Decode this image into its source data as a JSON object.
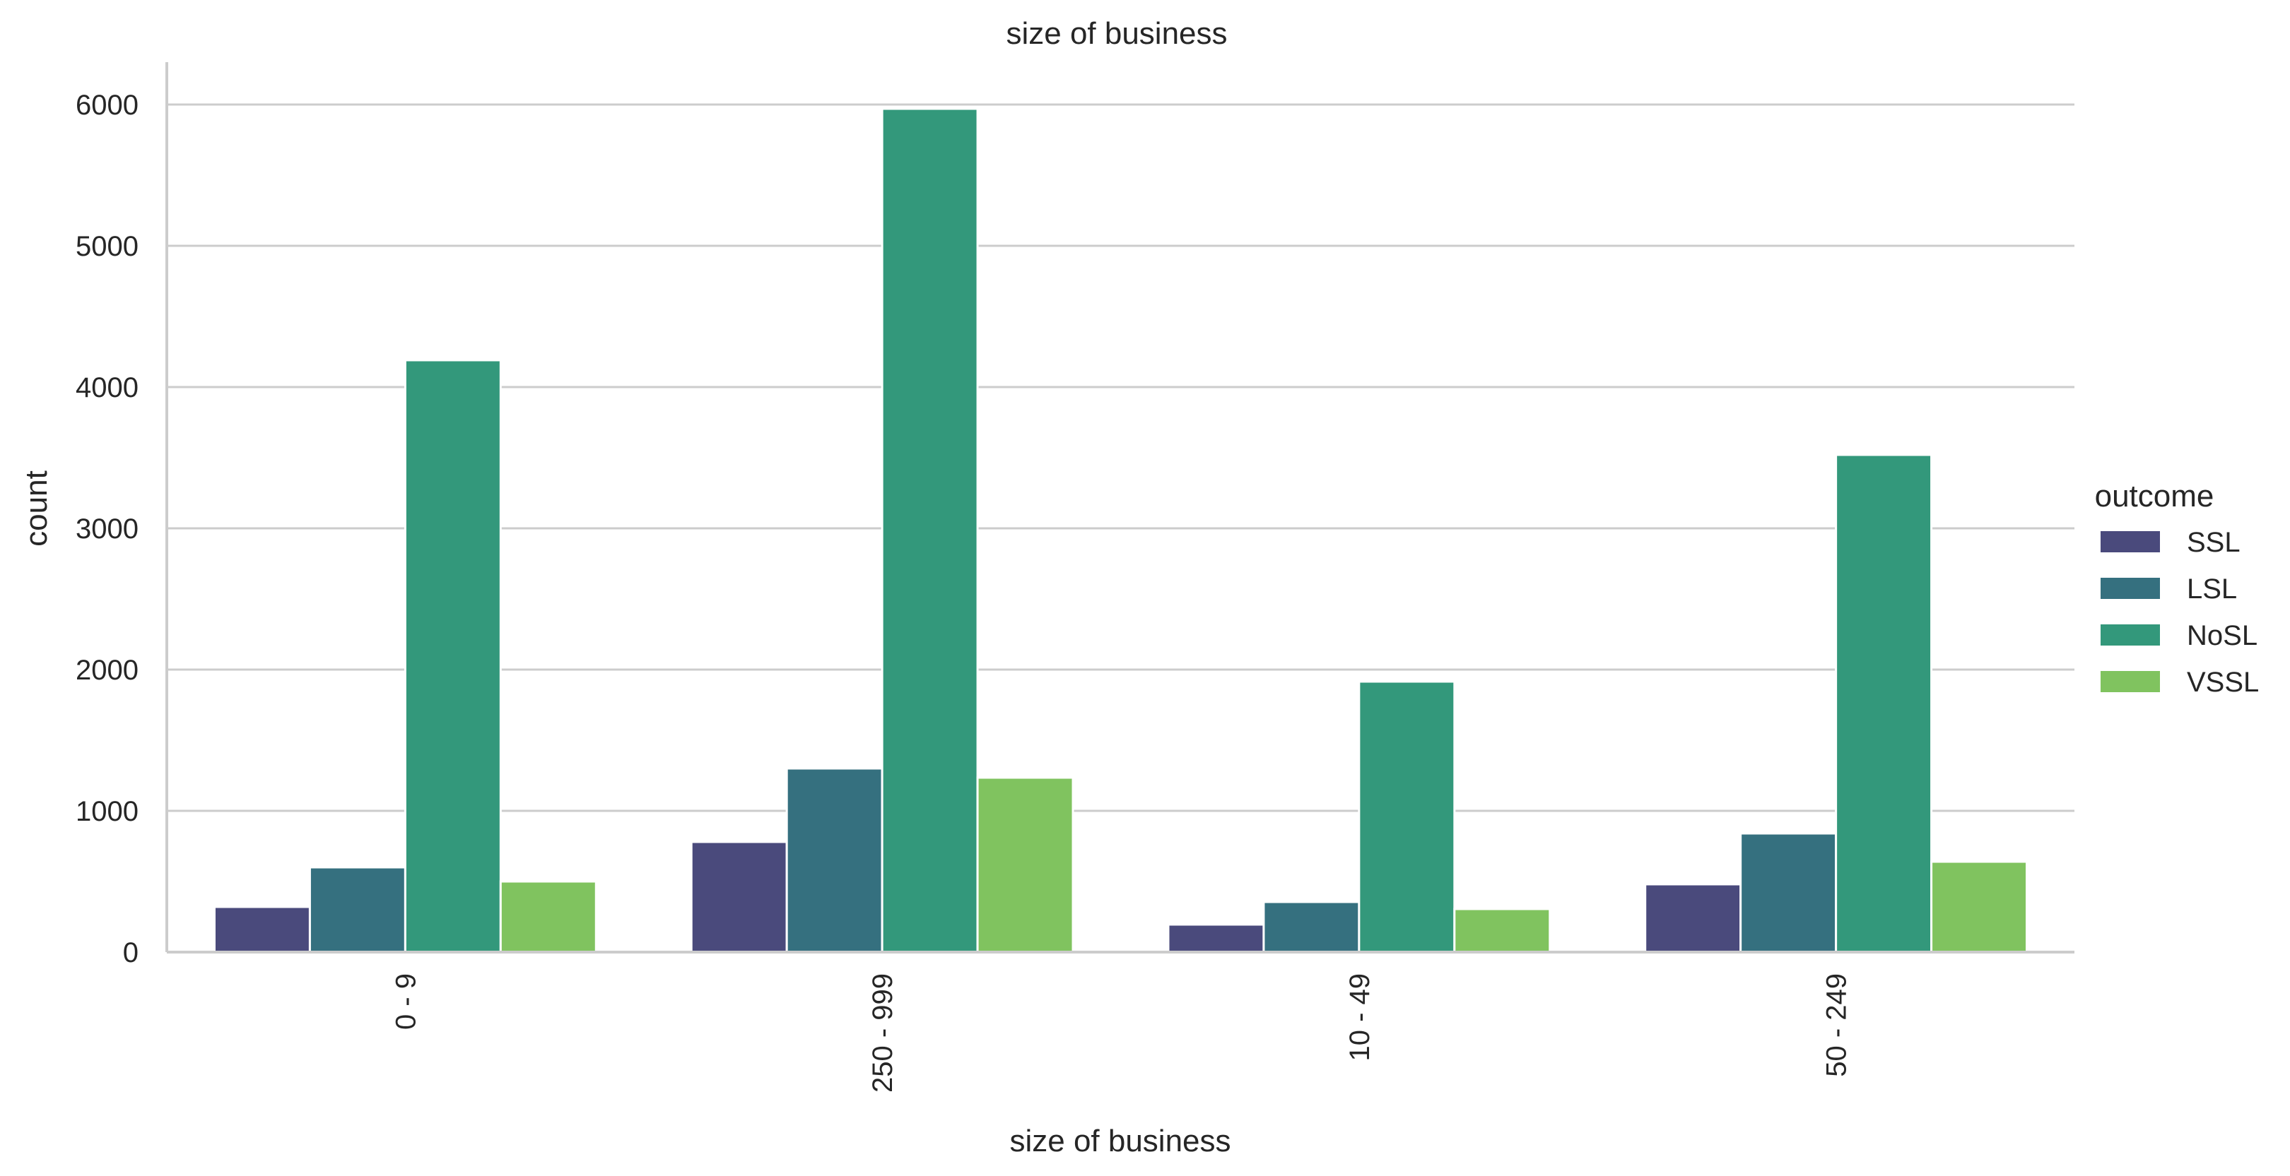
{
  "chart_data": {
    "type": "bar",
    "title": "size of business",
    "xlabel": "size of business",
    "ylabel": "count",
    "categories": [
      "0 - 9",
      "250 - 999",
      "10 - 49",
      "50 - 249"
    ],
    "series": [
      {
        "name": "SSL",
        "color": "#4a4a7c",
        "values": [
          320,
          780,
          195,
          480
        ]
      },
      {
        "name": "LSL",
        "color": "#35707f",
        "values": [
          600,
          1300,
          355,
          840
        ]
      },
      {
        "name": "NoSL",
        "color": "#33987b",
        "values": [
          4190,
          5970,
          1915,
          3520
        ]
      },
      {
        "name": "VSSL",
        "color": "#80c35f",
        "values": [
          500,
          1235,
          305,
          640
        ]
      }
    ],
    "ylim": [
      0,
      6300
    ],
    "yticks": [
      0,
      1000,
      2000,
      3000,
      4000,
      5000,
      6000
    ],
    "grid": "horizontal",
    "legend": {
      "title": "outcome",
      "position": "right"
    }
  }
}
